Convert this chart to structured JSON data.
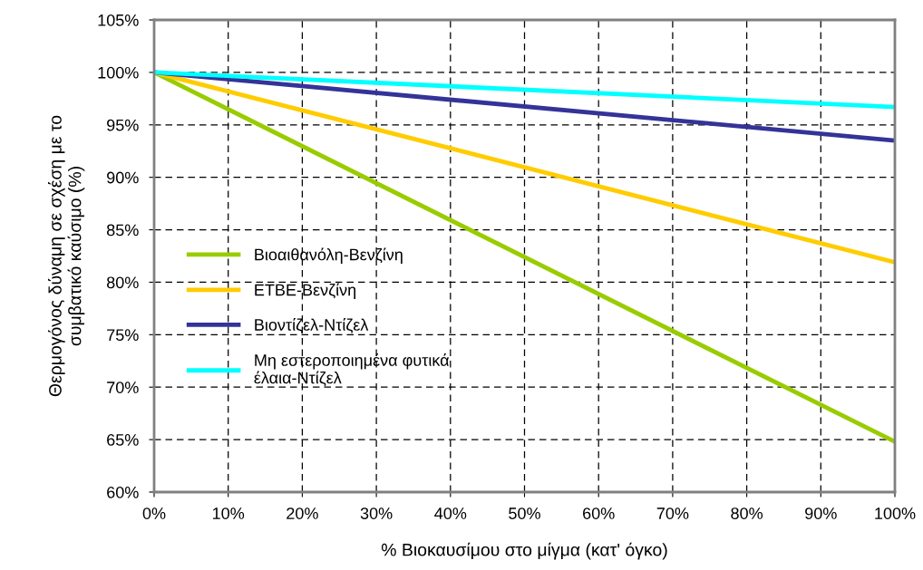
{
  "chart_data": {
    "type": "line",
    "xlabel": "% Βιοκαυσίμου στο μίγμα (κατ' όγκο)",
    "ylabel": "Θερμογόνος δύναμη σε σχέση με το\nσυμβατικό καύσιμο (%)",
    "x": [
      0,
      100
    ],
    "series": [
      {
        "name": "Βιοαιθανόλη-Βενζίνη",
        "color": "#99cc00",
        "values": [
          100,
          64.8
        ]
      },
      {
        "name": "ETBE-Βενζίνη",
        "color": "#ffcc00",
        "values": [
          100,
          81.9
        ]
      },
      {
        "name": "Βιοντίζελ-Ντίζελ",
        "color": "#333399",
        "values": [
          100,
          93.5
        ]
      },
      {
        "name": "Μη εστεροποιημένα φυτικά\nέλαια-Ντίζελ",
        "color": "#00ffff",
        "values": [
          100,
          96.7
        ]
      }
    ],
    "xlim": [
      0,
      100
    ],
    "xticks": [
      {
        "value": 0,
        "label": "0%"
      },
      {
        "value": 10,
        "label": "10%"
      },
      {
        "value": 20,
        "label": "20%"
      },
      {
        "value": 30,
        "label": "30%"
      },
      {
        "value": 40,
        "label": "40%"
      },
      {
        "value": 50,
        "label": "50%"
      },
      {
        "value": 60,
        "label": "60%"
      },
      {
        "value": 70,
        "label": "70%"
      },
      {
        "value": 80,
        "label": "80%"
      },
      {
        "value": 90,
        "label": "90%"
      },
      {
        "value": 100,
        "label": "100%"
      }
    ],
    "ylim": [
      60,
      105
    ],
    "yticks": [
      {
        "value": 60,
        "label": "60%"
      },
      {
        "value": 65,
        "label": "65%"
      },
      {
        "value": 70,
        "label": "70%"
      },
      {
        "value": 75,
        "label": "75%"
      },
      {
        "value": 80,
        "label": "80%"
      },
      {
        "value": 85,
        "label": "85%"
      },
      {
        "value": 90,
        "label": "90%"
      },
      {
        "value": 95,
        "label": "95%"
      },
      {
        "value": 100,
        "label": "100%"
      },
      {
        "value": 105,
        "label": "105%"
      }
    ],
    "grid": true,
    "legend": "left",
    "marker": "none",
    "line_style": "solid"
  }
}
